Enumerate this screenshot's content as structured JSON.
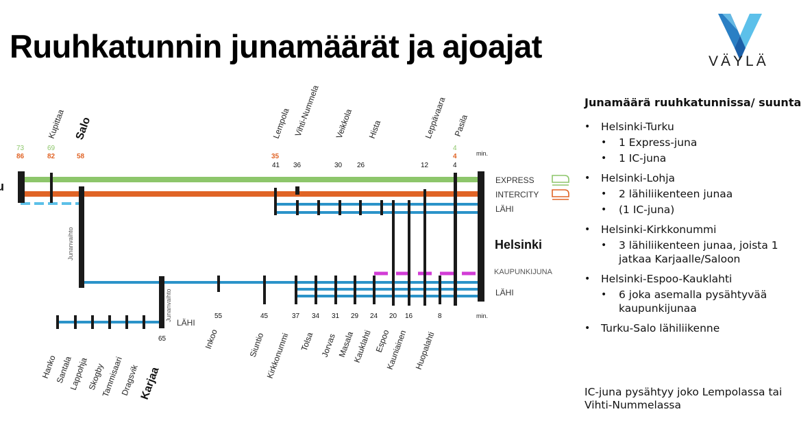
{
  "title": "Ruuhkatunnin junamäärät ja ajoajat",
  "logo": {
    "text": "VÄYLÄ"
  },
  "map": {
    "left_cut_label": "u",
    "line_labels": {
      "express": "EXPRESS",
      "intercity": "INTERCITY",
      "lahi_top": "LÄHI",
      "kaupunkijuna": "KAUPUNKIJUNA",
      "lahi_bottom": "LÄHI",
      "lahi_karjaa": "LÄHI"
    },
    "helsinki": "Helsinki",
    "junanvaihto": "Junanvaihto",
    "min": "min.",
    "top_stations": [
      {
        "name": "Kupittaa",
        "green": "69",
        "orange": "82"
      },
      {
        "name": "Salo",
        "orange": "58",
        "bold": true
      },
      {
        "name": "Lempola",
        "orange": "35",
        "black": "41"
      },
      {
        "name": "Vihti-Nummela",
        "black": "36"
      },
      {
        "name": "Veikkola",
        "black": "30"
      },
      {
        "name": "Hista",
        "black": "26"
      },
      {
        "name": "Leppävaara",
        "black": "12"
      },
      {
        "name": "Pasila",
        "green": "4",
        "orange": "4",
        "black": "4"
      }
    ],
    "turku_times": {
      "green": "73",
      "orange": "86"
    },
    "bottom_stations": [
      {
        "name": "Hanko"
      },
      {
        "name": "Santala"
      },
      {
        "name": "Lappohja"
      },
      {
        "name": "Skogby"
      },
      {
        "name": "Tammisaari"
      },
      {
        "name": "Dragsvik"
      },
      {
        "name": "Karjaa",
        "time": "65",
        "bold": true
      },
      {
        "name": "Inkoo",
        "time": "55"
      },
      {
        "name": "Siuntio",
        "time": "45"
      },
      {
        "name": "Kirkkonummi",
        "time": "37"
      },
      {
        "name": "Tolsa",
        "time": "34"
      },
      {
        "name": "Jorvas",
        "time": "31"
      },
      {
        "name": "Masala",
        "time": "29"
      },
      {
        "name": "Kauklahti",
        "time": "24"
      },
      {
        "name": "Espoo",
        "time": "20"
      },
      {
        "name": "Kauniainen",
        "time": "16"
      },
      {
        "name": "Huopalahti",
        "time": "8"
      }
    ],
    "colors": {
      "express": "#8dc66b",
      "intercity": "#e06426",
      "lahi": "#2b93c9",
      "kaupunkijuna": "#d23cd6",
      "dashed_blue": "#5cc0e8",
      "station": "#1a1a1a"
    }
  },
  "info": {
    "heading": "Junamäärä ruuhkatunnissa/ suunta",
    "routes": [
      {
        "name": "Helsinki-Turku",
        "items": [
          "1 Express-juna",
          "1 IC-juna"
        ]
      },
      {
        "name": "Helsinki-Lohja",
        "items": [
          "2 lähiliikenteen junaa",
          "(1 IC-juna)"
        ]
      },
      {
        "name": "Helsinki-Kirkkonummi",
        "items": [
          "3 lähiliikenteen junaa, joista 1 jatkaa Karjaalle/Saloon"
        ]
      },
      {
        "name": "Helsinki-Espoo-Kauklahti",
        "items": [
          "6 joka asemalla pysähtyvää kaupunkijunaa"
        ]
      },
      {
        "name": "Turku-Salo lähiliikenne",
        "items": []
      }
    ],
    "note": "IC-juna pysähtyy joko Lempolassa tai Vihti-Nummelassa"
  }
}
